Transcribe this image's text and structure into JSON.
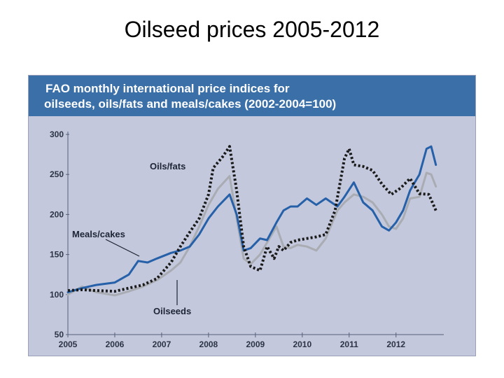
{
  "slide": {
    "title": "Oilseed prices 2005-2012"
  },
  "figure": {
    "title_line1": "FAO monthly international price indices for",
    "title_line2": "oilseeds, oils/fats and meals/cakes (2002-2004=100)"
  },
  "colors": {
    "background": "#c3c8dc",
    "header": "#3a6fa8",
    "oils_fats": "#1a1a1a",
    "meals_cakes": "#2560a8",
    "oilseeds": "#a9acb2"
  },
  "chart_data": {
    "type": "line",
    "title": "FAO monthly international price indices for oilseeds, oils/fats and meals/cakes (2002-2004=100)",
    "ylim": [
      50,
      300
    ],
    "yticks": [
      50,
      100,
      150,
      200,
      250,
      300
    ],
    "xlim": [
      2005,
      2012.9
    ],
    "xticks": [
      2005,
      2006,
      2007,
      2008,
      2009,
      2010,
      2011,
      2012
    ],
    "grid": false,
    "legend": "inline annotations",
    "series": [
      {
        "name": "Oils/fats",
        "style": "dotted",
        "x": [
          2005.0,
          2005.3,
          2005.6,
          2006.0,
          2006.3,
          2006.6,
          2006.9,
          2007.2,
          2007.4,
          2007.6,
          2007.8,
          2008.0,
          2008.1,
          2008.3,
          2008.45,
          2008.6,
          2008.75,
          2008.9,
          2009.1,
          2009.25,
          2009.4,
          2009.5,
          2009.6,
          2009.75,
          2009.9,
          2010.1,
          2010.3,
          2010.5,
          2010.7,
          2010.9,
          2011.0,
          2011.1,
          2011.3,
          2011.5,
          2011.7,
          2011.9,
          2012.1,
          2012.3,
          2012.5,
          2012.7,
          2012.85
        ],
        "values": [
          105,
          106,
          105,
          104,
          108,
          112,
          120,
          140,
          160,
          178,
          195,
          225,
          258,
          272,
          285,
          230,
          160,
          135,
          130,
          160,
          145,
          160,
          155,
          165,
          168,
          170,
          172,
          175,
          205,
          270,
          282,
          262,
          260,
          255,
          238,
          225,
          233,
          245,
          226,
          225,
          205
        ]
      },
      {
        "name": "Meals/cakes",
        "style": "solid",
        "x": [
          2005.0,
          2005.3,
          2005.6,
          2006.0,
          2006.3,
          2006.5,
          2006.7,
          2006.9,
          2007.2,
          2007.4,
          2007.6,
          2007.8,
          2008.0,
          2008.2,
          2008.45,
          2008.6,
          2008.75,
          2008.9,
          2009.1,
          2009.25,
          2009.45,
          2009.6,
          2009.75,
          2009.9,
          2010.1,
          2010.3,
          2010.5,
          2010.75,
          2010.9,
          2011.1,
          2011.3,
          2011.5,
          2011.7,
          2011.85,
          2012.0,
          2012.15,
          2012.3,
          2012.5,
          2012.65,
          2012.75,
          2012.85
        ],
        "values": [
          103,
          108,
          112,
          115,
          125,
          142,
          140,
          145,
          152,
          155,
          160,
          175,
          195,
          210,
          225,
          200,
          155,
          158,
          170,
          168,
          190,
          205,
          210,
          210,
          220,
          212,
          220,
          210,
          222,
          240,
          215,
          205,
          185,
          180,
          190,
          205,
          230,
          250,
          282,
          285,
          262
        ]
      },
      {
        "name": "Oilseeds",
        "style": "solid",
        "x": [
          2005.0,
          2005.3,
          2005.6,
          2006.0,
          2006.3,
          2006.6,
          2006.9,
          2007.2,
          2007.4,
          2007.6,
          2007.8,
          2008.0,
          2008.2,
          2008.45,
          2008.6,
          2008.75,
          2008.9,
          2009.1,
          2009.25,
          2009.45,
          2009.6,
          2009.75,
          2009.9,
          2010.1,
          2010.3,
          2010.5,
          2010.75,
          2010.9,
          2011.1,
          2011.3,
          2011.5,
          2011.7,
          2011.85,
          2012.0,
          2012.15,
          2012.3,
          2012.5,
          2012.65,
          2012.75,
          2012.85
        ],
        "values": [
          100,
          110,
          103,
          99,
          104,
          110,
          118,
          130,
          140,
          160,
          185,
          212,
          232,
          248,
          195,
          145,
          138,
          150,
          165,
          185,
          160,
          158,
          162,
          160,
          155,
          170,
          205,
          215,
          225,
          222,
          215,
          200,
          185,
          182,
          195,
          220,
          222,
          252,
          250,
          235
        ]
      }
    ],
    "annotations": [
      "Oils/fats",
      "Meals/cakes",
      "Oilseeds"
    ]
  }
}
